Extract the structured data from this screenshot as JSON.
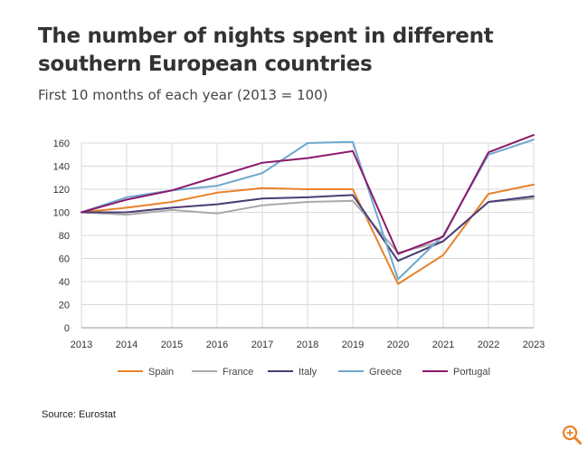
{
  "chart_data": {
    "type": "line",
    "title": "The number of nights spent in different southern European countries",
    "subtitle": "First 10 months of each year (2013 = 100)",
    "xlabel": "",
    "ylabel": "",
    "ylim": [
      0,
      160
    ],
    "yticks": [
      0,
      20,
      40,
      60,
      80,
      100,
      120,
      140,
      160
    ],
    "categories": [
      "2013",
      "2014",
      "2015",
      "2016",
      "2017",
      "2018",
      "2019",
      "2020",
      "2021",
      "2022",
      "2023"
    ],
    "legend_position": "bottom",
    "grid": true,
    "series": [
      {
        "name": "Spain",
        "color": "#E8822A",
        "values": [
          100,
          104,
          109,
          117,
          121,
          120,
          120,
          38,
          63,
          116,
          124
        ]
      },
      {
        "name": "France",
        "color": "#AAAAAA",
        "values": [
          100,
          98,
          102,
          99,
          106,
          109,
          110,
          65,
          75,
          109,
          112
        ]
      },
      {
        "name": "Italy",
        "color": "#4B3C75",
        "values": [
          100,
          100,
          104,
          107,
          112,
          113,
          115,
          58,
          75,
          109,
          114
        ]
      },
      {
        "name": "Greece",
        "color": "#6EA8CE",
        "values": [
          100,
          113,
          119,
          123,
          134,
          160,
          161,
          42,
          80,
          150,
          163
        ]
      },
      {
        "name": "Portugal",
        "color": "#8B1A6B",
        "values": [
          100,
          111,
          119,
          131,
          143,
          147,
          153,
          64,
          79,
          152,
          167
        ]
      }
    ]
  },
  "source": "Source: Eurostat",
  "zoom_icon": "zoom-in-icon"
}
